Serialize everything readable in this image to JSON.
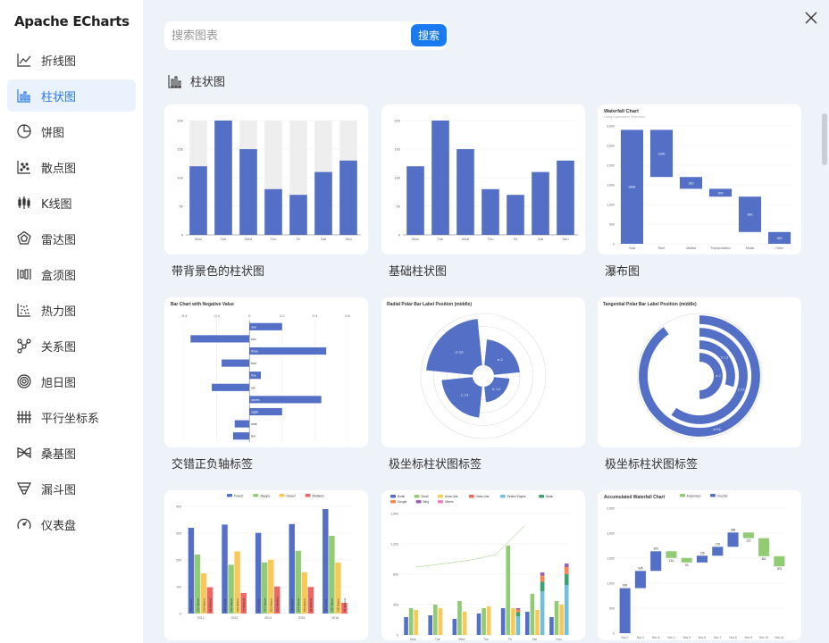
{
  "app": {
    "title": "Apache ECharts"
  },
  "sidebar": {
    "items": [
      {
        "label": "折线图",
        "icon": "line-chart-icon",
        "active": false
      },
      {
        "label": "柱状图",
        "icon": "bar-chart-icon",
        "active": true
      },
      {
        "label": "饼图",
        "icon": "pie-chart-icon",
        "active": false
      },
      {
        "label": "散点图",
        "icon": "scatter-chart-icon",
        "active": false
      },
      {
        "label": "K线图",
        "icon": "candlestick-chart-icon",
        "active": false
      },
      {
        "label": "雷达图",
        "icon": "radar-chart-icon",
        "active": false
      },
      {
        "label": "盒须图",
        "icon": "boxplot-chart-icon",
        "active": false
      },
      {
        "label": "热力图",
        "icon": "heatmap-chart-icon",
        "active": false
      },
      {
        "label": "关系图",
        "icon": "graph-chart-icon",
        "active": false
      },
      {
        "label": "旭日图",
        "icon": "sunburst-chart-icon",
        "active": false
      },
      {
        "label": "平行坐标系",
        "icon": "parallel-chart-icon",
        "active": false
      },
      {
        "label": "桑基图",
        "icon": "sankey-chart-icon",
        "active": false
      },
      {
        "label": "漏斗图",
        "icon": "funnel-chart-icon",
        "active": false
      },
      {
        "label": "仪表盘",
        "icon": "gauge-chart-icon",
        "active": false
      }
    ]
  },
  "search": {
    "placeholder": "搜索图表",
    "button_label": "搜索"
  },
  "section": {
    "title": "柱状图",
    "icon": "bar-chart-icon"
  },
  "colors": {
    "accent": "#1a7af0",
    "series_blue": "#5470c6",
    "series_green": "#91cc75",
    "series_yellow": "#fac858",
    "series_red": "#ee6666"
  },
  "cards": [
    {
      "caption": "带背景色的柱状图",
      "chart_data": {
        "type": "bar",
        "categories": [
          "Mon",
          "Tue",
          "Wed",
          "Thu",
          "Fri",
          "Sat",
          "Sun"
        ],
        "values": [
          120,
          200,
          150,
          80,
          70,
          110,
          130
        ],
        "ylim": [
          0,
          200
        ],
        "yticks": [
          "0",
          "50",
          "100",
          "150",
          "200"
        ],
        "background_bars": true
      }
    },
    {
      "caption": "基础柱状图",
      "chart_data": {
        "type": "bar",
        "categories": [
          "Mon",
          "Tue",
          "Wed",
          "Thu",
          "Fri",
          "Sat",
          "Sun"
        ],
        "values": [
          120,
          200,
          150,
          80,
          70,
          110,
          130
        ],
        "ylim": [
          0,
          200
        ],
        "yticks": [
          "0",
          "50",
          "100",
          "150",
          "200"
        ]
      }
    },
    {
      "caption": "瀑布图",
      "chart_data": {
        "type": "bar",
        "title": "Waterfall Chart",
        "subtitle": "Living Expenses in Shenzhen",
        "categories": [
          "Total",
          "Rent",
          "Utilities",
          "Transportation",
          "Meals",
          "Other"
        ],
        "values": [
          2900,
          1200,
          300,
          200,
          900,
          300
        ],
        "ylim": [
          0,
          3000
        ],
        "yticks": [
          "0",
          "500",
          "1,000",
          "1,500",
          "2,000",
          "2,500",
          "3,000"
        ]
      }
    },
    {
      "caption": "交错正负轴标签",
      "chart_data": {
        "type": "bar",
        "title": "Bar Chart with Negative Value",
        "categories": [
          "one",
          "two",
          "three",
          "four",
          "five",
          "six",
          "seven",
          "eight",
          "nine",
          "ten"
        ],
        "values": [
          0.2,
          -0.36,
          0.47,
          -0.17,
          0.07,
          -0.23,
          0.44,
          0.2,
          -0.09,
          -0.1
        ],
        "xticks": [
          "-0.4",
          "-0.2",
          "0",
          "0.2",
          "0.4",
          "0.6"
        ]
      }
    },
    {
      "caption": "极坐标柱状图标签",
      "chart_data": {
        "type": "bar",
        "title": "Radial Polar Bar Label Position (middle)",
        "categories": [
          "a",
          "b",
          "c",
          "d"
        ],
        "values": [
          2,
          1.2,
          2.4,
          3.6
        ]
      }
    },
    {
      "caption": "极坐标柱状图标签",
      "chart_data": {
        "type": "bar",
        "title": "Tangential Polar Bar Label Position (middle)",
        "categories": [
          "a",
          "b",
          "c",
          "d"
        ],
        "values": [
          2,
          1.2,
          2.4,
          3.6
        ]
      }
    },
    {
      "caption": "",
      "chart_data": {
        "type": "bar",
        "series": [
          {
            "name": "Forest",
            "values": [
              320,
              332,
              301,
              334,
              390
            ]
          },
          {
            "name": "Steppe",
            "values": [
              220,
              182,
              191,
              234,
              290
            ]
          },
          {
            "name": "Desert",
            "values": [
              150,
              232,
              201,
              154,
              190
            ]
          },
          {
            "name": "Wetland",
            "values": [
              98,
              77,
              101,
              99,
              40
            ]
          }
        ],
        "categories": [
          "2012",
          "2013",
          "2014",
          "2015",
          "2016"
        ],
        "yticks": [
          "0",
          "100",
          "200",
          "300",
          "400"
        ]
      }
    },
    {
      "caption": "",
      "chart_data": {
        "type": "bar",
        "series": [
          {
            "name": "Email"
          },
          {
            "name": "Email"
          },
          {
            "name": "Union Ads"
          },
          {
            "name": "Video Ads"
          },
          {
            "name": "Search Engine"
          },
          {
            "name": "Baidu"
          },
          {
            "name": "Google"
          },
          {
            "name": "Bing"
          },
          {
            "name": "Others"
          }
        ],
        "categories": [
          "Mon",
          "Tue",
          "Wed",
          "Thu",
          "Fri",
          "Sat",
          "Sun"
        ],
        "yticks": [
          "0",
          "400",
          "800",
          "1,200",
          "1,600"
        ]
      }
    },
    {
      "caption": "",
      "chart_data": {
        "type": "bar",
        "title": "Accumulated Waterfall Chart",
        "series": [
          {
            "name": "Expenses",
            "values": [
              0,
              0,
              0,
              134,
              90,
              0,
              0,
              0,
              113,
              361,
              203
            ]
          },
          {
            "name": "Income",
            "values": [
              900,
              345,
              393,
              0,
              0,
              135,
              178,
              286,
              0,
              0,
              0
            ]
          }
        ],
        "categories": [
          "Nov 1",
          "Nov 2",
          "Nov 3",
          "Nov 4",
          "Nov 5",
          "Nov 6",
          "Nov 7",
          "Nov 8",
          "Nov 9",
          "Nov 10",
          "Nov 11"
        ],
        "yticks": [
          "0",
          "500",
          "1,000",
          "1,500",
          "2,000",
          "2,500"
        ]
      }
    }
  ]
}
